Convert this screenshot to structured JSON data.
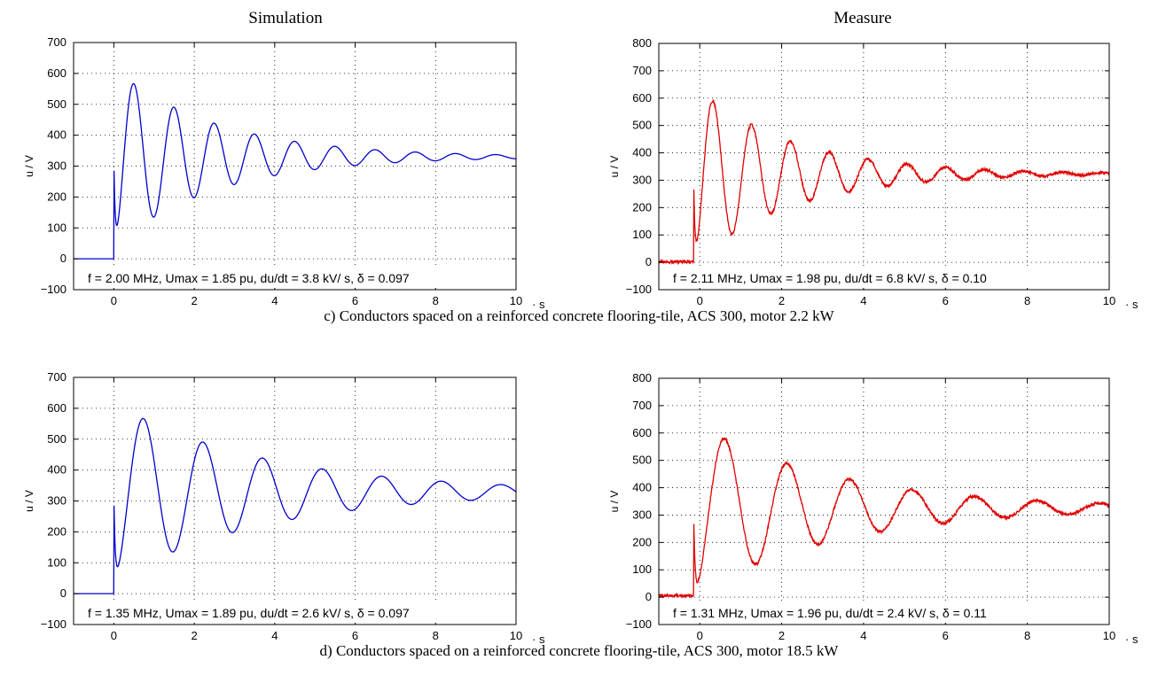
{
  "column_titles": [
    "Simulation",
    "Measure"
  ],
  "captions": [
    "c) Conductors spaced on a reinforced concrete flooring-tile, ACS 300, motor 2.2 kW",
    "d) Conductors spaced on a reinforced concrete flooring-tile, ACS 300, motor 18.5 kW"
  ],
  "colors": {
    "simulation": "#0000cc",
    "measure": "#e00000",
    "grid": "#000000"
  },
  "chart_data": [
    {
      "type": "line",
      "title": "Simulation",
      "ylabel": "u / V",
      "xunit_label": "· s",
      "xlim": [
        -1,
        10
      ],
      "ylim": [
        -100,
        700
      ],
      "xticks": [
        0,
        2,
        4,
        6,
        8,
        10
      ],
      "yticks": [
        -100,
        0,
        100,
        200,
        300,
        400,
        500,
        600,
        700
      ],
      "grid": true,
      "annotation": "f = 2.00 MHz, Umax = 1.85 pu, du/dt = 3.8 kV/  s, δ = 0.097",
      "signal": {
        "kind": "simulation",
        "start": 0,
        "f": 2.0,
        "final": 330,
        "umax": 617,
        "delta": 0.097
      },
      "series": [
        {
          "name": "",
          "color": "#0000cc"
        }
      ]
    },
    {
      "type": "line",
      "title": "Measure",
      "ylabel": "u / V",
      "xunit_label": "· s",
      "xlim": [
        -1,
        10
      ],
      "ylim": [
        -100,
        800
      ],
      "xticks": [
        0,
        2,
        4,
        6,
        8,
        10
      ],
      "yticks": [
        -100,
        0,
        100,
        200,
        300,
        400,
        500,
        600,
        700,
        800
      ],
      "grid": true,
      "annotation": "f = 2.11 MHz, Umax = 1.98 pu, du/dt = 6.8 kV/  s, δ = 0.10",
      "signal": {
        "kind": "measure",
        "start": -0.15,
        "f": 2.11,
        "final": 323,
        "umax": 648,
        "delta": 0.1,
        "pre": 2
      },
      "series": [
        {
          "name": "",
          "color": "#e00000"
        }
      ]
    },
    {
      "type": "line",
      "title": "",
      "ylabel": "u / V",
      "xunit_label": "· s",
      "xlim": [
        -1,
        10
      ],
      "ylim": [
        -100,
        700
      ],
      "xticks": [
        0,
        2,
        4,
        6,
        8,
        10
      ],
      "yticks": [
        -100,
        0,
        100,
        200,
        300,
        400,
        500,
        600,
        700
      ],
      "grid": true,
      "annotation": "f = 1.35 MHz, Umax = 1.89 pu, du/dt = 2.6 kV/  s, δ = 0.097",
      "signal": {
        "kind": "simulation",
        "start": 0,
        "f": 1.35,
        "final": 330,
        "umax": 617,
        "delta": 0.097
      },
      "series": [
        {
          "name": "",
          "color": "#0000cc"
        }
      ]
    },
    {
      "type": "line",
      "title": "",
      "ylabel": "u / V",
      "xunit_label": "· s",
      "xlim": [
        -1,
        10
      ],
      "ylim": [
        -100,
        800
      ],
      "xticks": [
        0,
        2,
        4,
        6,
        8,
        10
      ],
      "yticks": [
        -100,
        0,
        100,
        200,
        300,
        400,
        500,
        600,
        700,
        800
      ],
      "grid": true,
      "annotation": "f = 1.31 MHz, Umax = 1.96 pu, du/dt = 2.4 kV/  s, δ = 0.11",
      "signal": {
        "kind": "measure",
        "start": -0.15,
        "f": 1.31,
        "final": 325,
        "umax": 642,
        "delta": 0.11,
        "pre": 5
      },
      "series": [
        {
          "name": "",
          "color": "#e00000"
        }
      ]
    }
  ]
}
